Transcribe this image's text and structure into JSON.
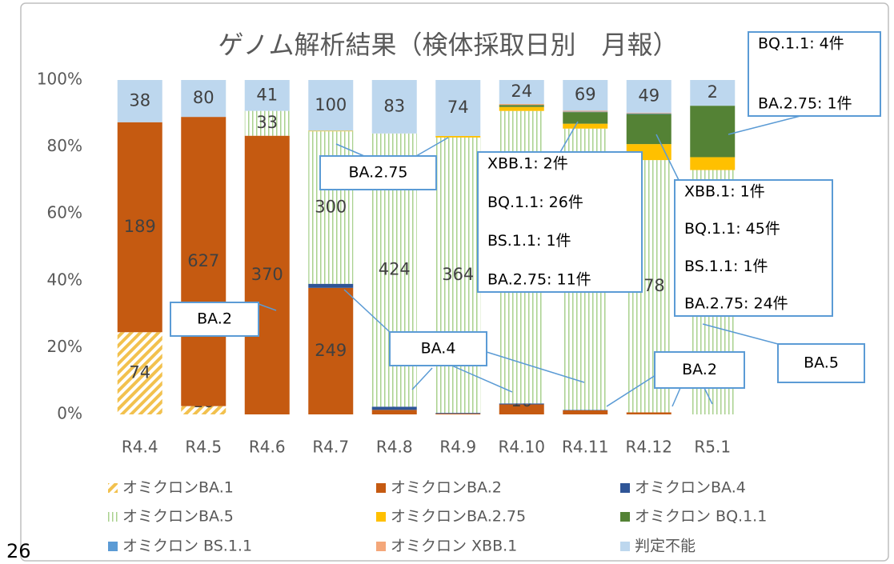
{
  "chart_data": {
    "type": "stacked-percent-bar",
    "title": "ゲノム解析結果（検体採取日別　月報）",
    "categories": [
      "R4.4",
      "R4.5",
      "R4.6",
      "R4.7",
      "R4.8",
      "R4.9",
      "R4.10",
      "R4.11",
      "R4.12",
      "R5.1"
    ],
    "series": [
      {
        "name": "オミクロンBA.1",
        "color": "#f2c14e",
        "pattern": "diagonal",
        "values": [
          74,
          18,
          0,
          0,
          0,
          0,
          0,
          0,
          0,
          0
        ],
        "value_labels": [
          "74",
          "18",
          null,
          null,
          null,
          null,
          null,
          null,
          null,
          null
        ]
      },
      {
        "name": "オミクロンBA.2",
        "color": "#c55a11",
        "values": [
          189,
          627,
          370,
          249,
          7,
          1,
          10,
          9,
          3,
          0
        ],
        "value_labels": [
          "189",
          "627",
          "370",
          "249",
          "7",
          "1",
          "10",
          "9",
          "3",
          "0"
        ]
      },
      {
        "name": "オミクロンBA.4",
        "color": "#2f5597",
        "values": [
          0,
          0,
          0,
          8,
          5,
          1,
          1,
          1,
          0,
          0
        ],
        "value_labels": [
          null,
          null,
          null,
          "8",
          "5",
          "1",
          "1",
          "1",
          null,
          null
        ]
      },
      {
        "name": "オミクロンBA.5",
        "color": "#a9d18e",
        "pattern": "vertical",
        "values": [
          0,
          0,
          33,
          300,
          424,
          364,
          293,
          631,
          378,
          19
        ],
        "value_labels": [
          null,
          null,
          "33",
          "300",
          "424",
          "364",
          "293",
          "631",
          "378",
          "19"
        ]
      },
      {
        "name": "オミクロンBA.2.75",
        "color": "#ffc000",
        "values": [
          0,
          0,
          0,
          1,
          0,
          2,
          4,
          11,
          24,
          1
        ],
        "value_labels": [
          null,
          null,
          null,
          "1",
          null,
          "2",
          null,
          null,
          null,
          null
        ]
      },
      {
        "name": "オミクロン BQ.1.1",
        "color": "#548235",
        "values": [
          0,
          0,
          0,
          0,
          0,
          0,
          2,
          26,
          45,
          4
        ],
        "value_labels": [
          null,
          null,
          null,
          null,
          null,
          null,
          null,
          null,
          null,
          null
        ]
      },
      {
        "name": "オミクロン BS.1.1",
        "color": "#5b9bd5",
        "values": [
          0,
          0,
          0,
          0,
          0,
          0,
          0,
          1,
          1,
          0
        ],
        "value_labels": [
          null,
          null,
          null,
          null,
          null,
          null,
          null,
          null,
          null,
          null
        ]
      },
      {
        "name": "オミクロン XBB.1",
        "color": "#f4a77a",
        "values": [
          0,
          0,
          0,
          0,
          0,
          0,
          1,
          2,
          1,
          0
        ],
        "value_labels": [
          null,
          null,
          null,
          null,
          null,
          null,
          null,
          null,
          null,
          null
        ]
      },
      {
        "name": "判定不能",
        "color": "#bdd7ee",
        "values": [
          38,
          80,
          41,
          100,
          83,
          74,
          24,
          69,
          49,
          2
        ],
        "value_labels": [
          "38",
          "80",
          "41",
          "100",
          "83",
          "74",
          "24",
          "69",
          "49",
          "2"
        ]
      }
    ],
    "ylim": [
      0,
      100
    ],
    "yticks": [
      {
        "value": 0,
        "label": "0%"
      },
      {
        "value": 20,
        "label": "20%"
      },
      {
        "value": 40,
        "label": "40%"
      },
      {
        "value": 60,
        "label": "60%"
      },
      {
        "value": 80,
        "label": "80%"
      },
      {
        "value": 100,
        "label": "100%"
      }
    ],
    "legend": "bottom",
    "annotations": [
      {
        "lines": [
          "BQ.1.1: 4件",
          "BA.2.75: 1件"
        ]
      },
      {
        "lines": [
          "BA.2.75"
        ]
      },
      {
        "lines": [
          "XBB.1: 2件",
          "BQ.1.1: 26件",
          "BS.1.1: 1件",
          "BA.2.75: 11件"
        ]
      },
      {
        "lines": [
          "XBB.1: 1件",
          "BQ.1.1: 45件",
          "BS.1.1: 1件",
          "BA.2.75: 24件"
        ]
      },
      {
        "lines": [
          "BA.2"
        ]
      },
      {
        "lines": [
          "BA.4"
        ]
      },
      {
        "lines": [
          "BA.2"
        ]
      },
      {
        "lines": [
          "BA.5"
        ]
      }
    ]
  },
  "page_number": "26"
}
